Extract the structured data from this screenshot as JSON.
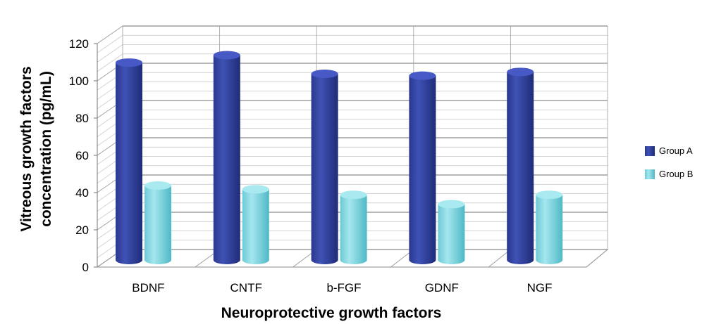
{
  "chart_data": {
    "type": "bar",
    "style": "3d-cylinder",
    "title": "",
    "xlabel": "Neuroprotective growth factors",
    "ylabel_lines": [
      "Vitreous growth factors",
      "concentration (pg/mL)"
    ],
    "categories": [
      "BDNF",
      "CNTF",
      "b-FGF",
      "GDNF",
      "NGF"
    ],
    "series": [
      {
        "name": "Group A",
        "values": [
          106,
          110,
          100,
          99,
          101
        ],
        "color": "#2E3E9A"
      },
      {
        "name": "Group B",
        "values": [
          40,
          38,
          35,
          30,
          35
        ],
        "color": "#7FD3DF"
      }
    ],
    "ylim": [
      0,
      120
    ],
    "yticks": [
      0,
      20,
      40,
      60,
      80,
      100,
      120
    ],
    "grid": true,
    "legend_position": "right"
  }
}
